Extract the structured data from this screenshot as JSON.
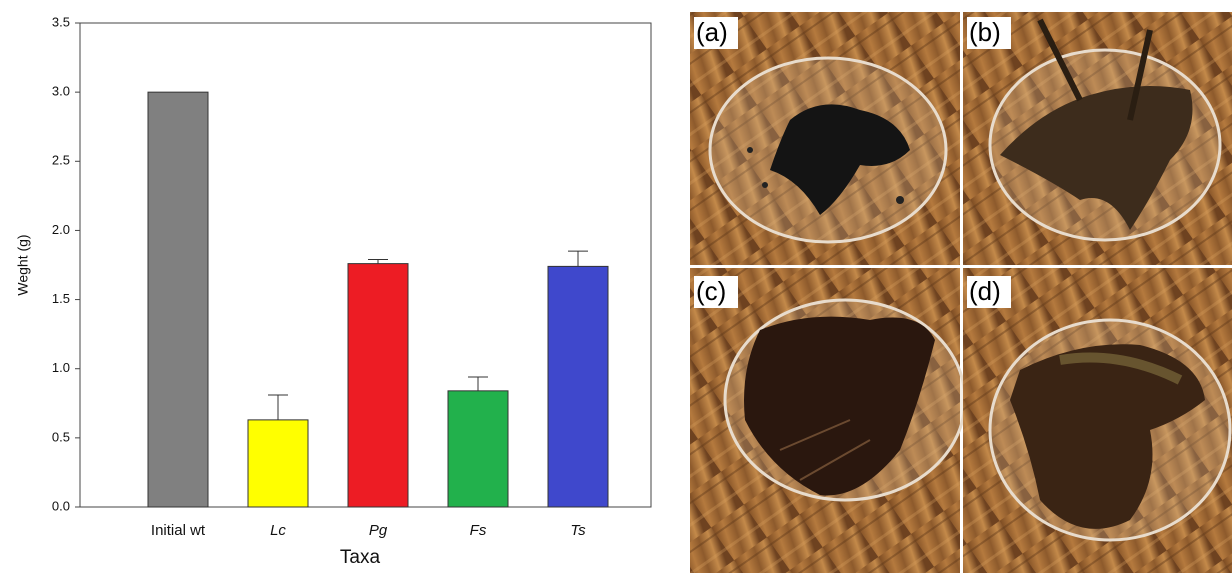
{
  "chart_data": {
    "type": "bar",
    "categories": [
      "Initial wt",
      "Lc",
      "Pg",
      "Fs",
      "Ts"
    ],
    "category_italic": [
      false,
      true,
      true,
      true,
      true
    ],
    "values": [
      3.0,
      0.63,
      1.76,
      0.84,
      1.74
    ],
    "errors": [
      null,
      0.18,
      0.03,
      0.1,
      0.11
    ],
    "colors": [
      "#808080",
      "#ffff00",
      "#ed1c24",
      "#22b14c",
      "#3f48cc"
    ],
    "x_label": "Taxa",
    "y_label": "Weght (g)",
    "ylim": [
      0,
      3.5
    ],
    "yticks": [
      {
        "value": 0,
        "label": "0.0"
      },
      {
        "value": 0.5,
        "label": "0.5"
      },
      {
        "value": 1,
        "label": "1.0"
      },
      {
        "value": 1.5,
        "label": "1.5"
      },
      {
        "value": 2,
        "label": "2.0"
      },
      {
        "value": 2.5,
        "label": "2.5"
      },
      {
        "value": 3,
        "label": "3.0"
      },
      {
        "value": 3.5,
        "label": "3.5"
      }
    ],
    "grid": false
  },
  "photo_panels": {
    "labels": [
      "(a)",
      "(b)",
      "(c)",
      "(d)"
    ]
  }
}
